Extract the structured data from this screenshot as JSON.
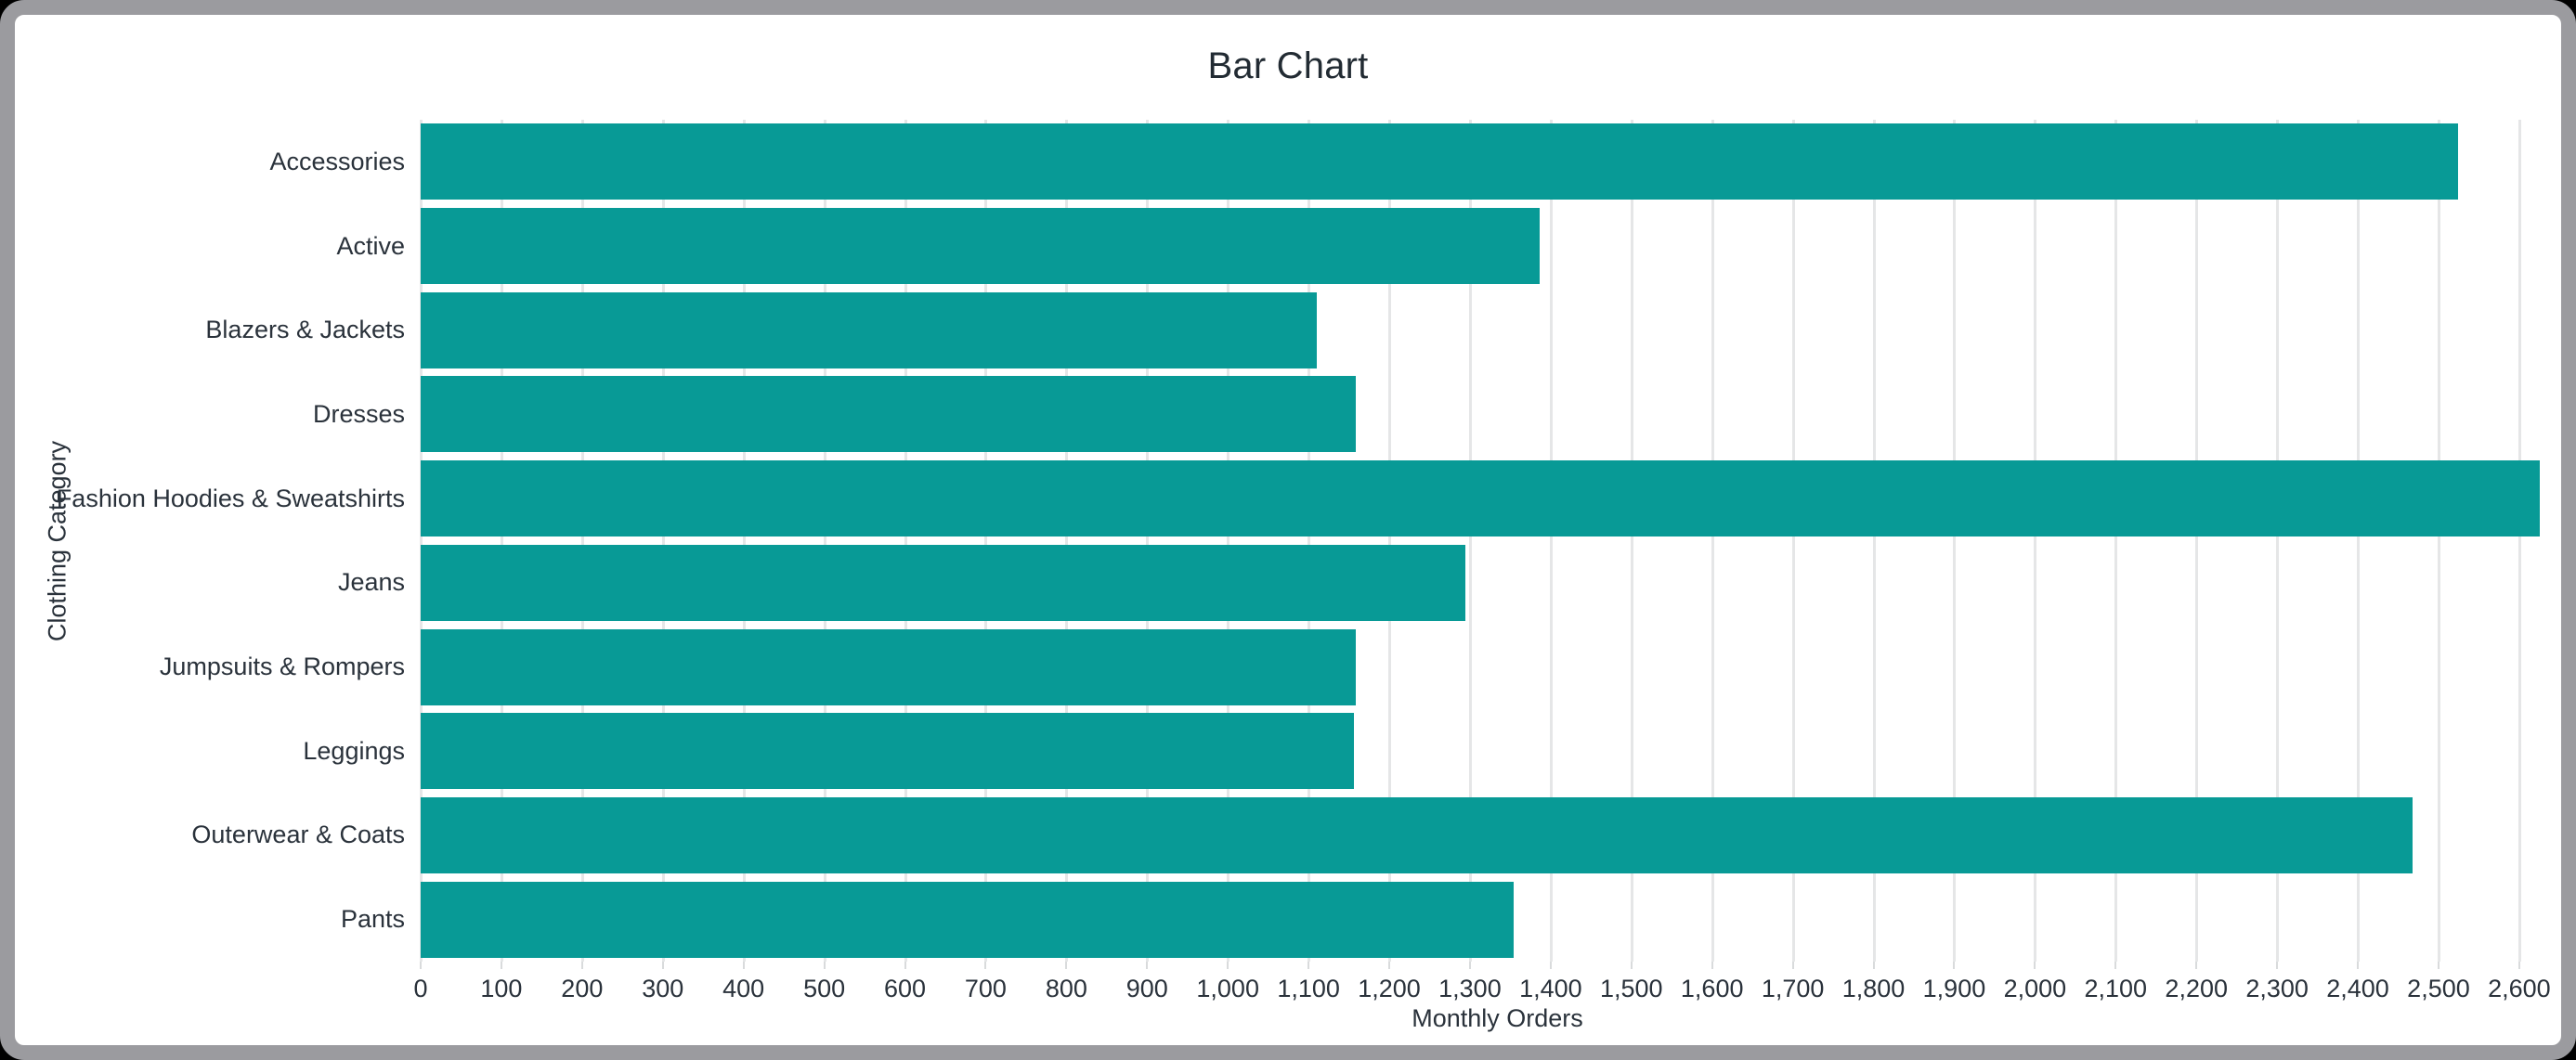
{
  "chart_data": {
    "type": "bar",
    "orientation": "horizontal",
    "title": "Bar Chart",
    "xlabel": "Monthly Orders",
    "ylabel": "Clothing Category",
    "categories": [
      "Accessories",
      "Active",
      "Blazers & Jackets",
      "Dresses",
      "Fashion Hoodies & Sweatshirts",
      "Jeans",
      "Jumpsuits & Rompers",
      "Leggings",
      "Outerwear & Coats",
      "Pants"
    ],
    "values": [
      2524,
      1386,
      1110,
      1158,
      2625,
      1294,
      1158,
      1156,
      2468,
      1354
    ],
    "xlim": [
      0,
      2668
    ],
    "xticks": [
      0,
      100,
      200,
      300,
      400,
      500,
      600,
      700,
      800,
      900,
      1000,
      1100,
      1200,
      1300,
      1400,
      1500,
      1600,
      1700,
      1800,
      1900,
      2000,
      2100,
      2200,
      2300,
      2400,
      2500,
      2600
    ],
    "grid": true,
    "legend": "none",
    "colors": {
      "bar": "#089a96",
      "gridline": "#e5e6e7",
      "tick_mark": "#d9dbdc",
      "text": "#2a323b",
      "title_text": "#222b33",
      "frame_border": "#9b9b9f",
      "background": "#ffffff"
    }
  }
}
